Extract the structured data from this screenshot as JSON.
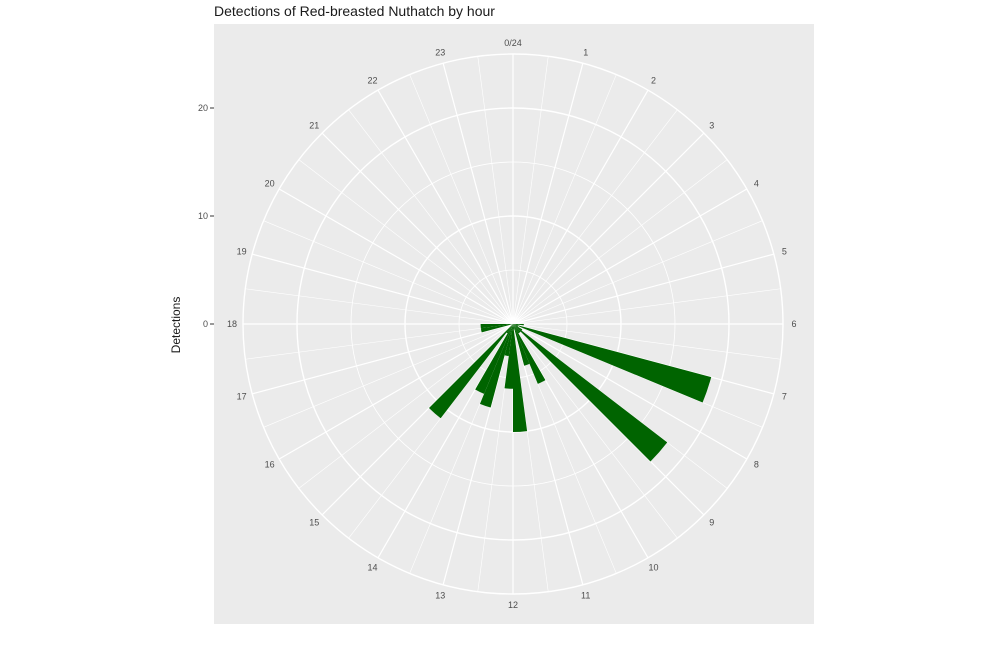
{
  "chart_data": {
    "type": "bar",
    "coord": "polar",
    "title": "Detections of Red-breasted Nuthatch by hour",
    "ylabel": "Detections",
    "xlabel": "",
    "ylim": [
      0,
      25
    ],
    "y_ticks": [
      0,
      10,
      20
    ],
    "x_tick_labels": [
      "0/24",
      "1",
      "2",
      "3",
      "4",
      "5",
      "6",
      "7",
      "8",
      "9",
      "10",
      "11",
      "12",
      "13",
      "14",
      "15",
      "16",
      "17",
      "18",
      "19",
      "20",
      "21",
      "22",
      "23"
    ],
    "bar_color": "#006400",
    "background": "#ebebeb",
    "grid": true,
    "bars": [
      {
        "x": 6.25,
        "y": 1
      },
      {
        "x": 6.75,
        "y": 0.5
      },
      {
        "x": 7.25,
        "y": 19
      },
      {
        "x": 7.75,
        "y": 0.5
      },
      {
        "x": 8.25,
        "y": 1
      },
      {
        "x": 8.75,
        "y": 18
      },
      {
        "x": 9.25,
        "y": 1
      },
      {
        "x": 9.75,
        "y": 1
      },
      {
        "x": 10.25,
        "y": 6
      },
      {
        "x": 10.75,
        "y": 4
      },
      {
        "x": 11.25,
        "y": 0.5
      },
      {
        "x": 11.75,
        "y": 10
      },
      {
        "x": 12.25,
        "y": 6
      },
      {
        "x": 12.75,
        "y": 3
      },
      {
        "x": 13.25,
        "y": 8
      },
      {
        "x": 13.75,
        "y": 7
      },
      {
        "x": 14.25,
        "y": 1
      },
      {
        "x": 14.75,
        "y": 11
      },
      {
        "x": 17.25,
        "y": 3
      },
      {
        "x": 17.75,
        "y": 3
      }
    ]
  }
}
